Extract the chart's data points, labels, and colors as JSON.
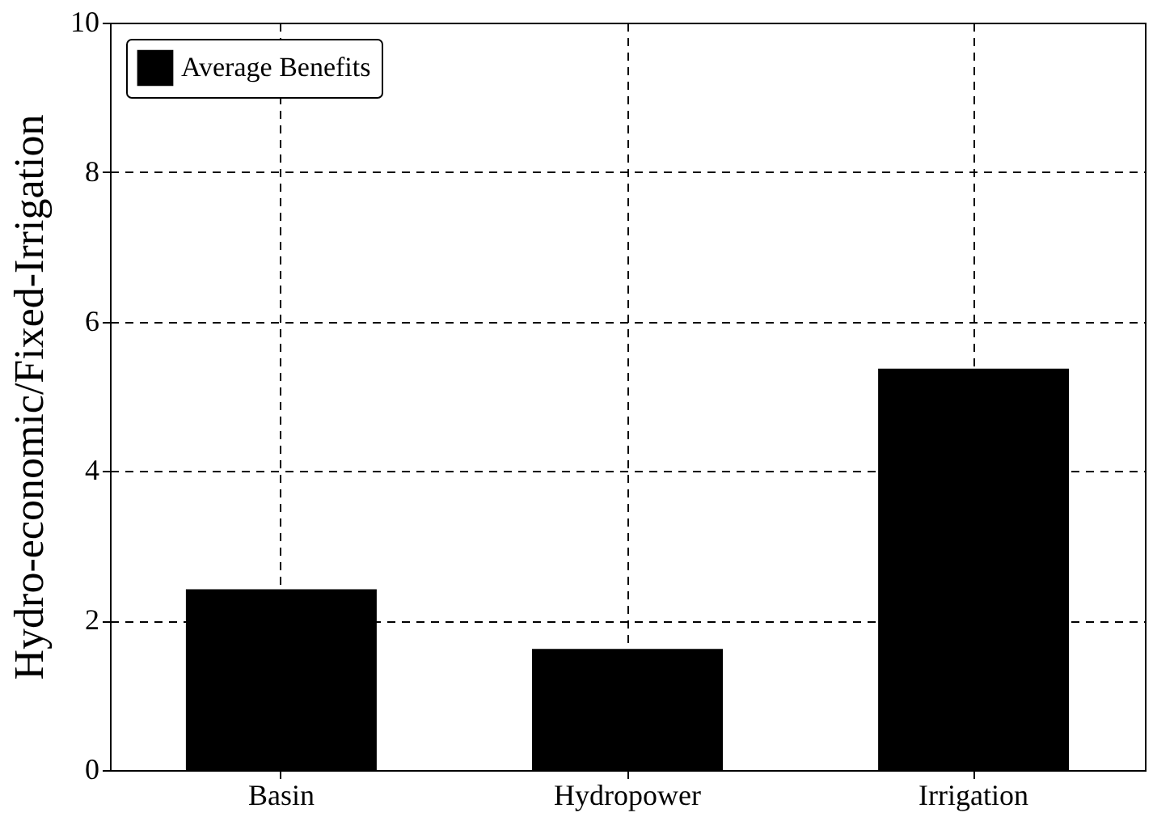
{
  "chart_data": {
    "type": "bar",
    "ylabel": "Hydro-economic/Fixed-Irrigation",
    "categories": [
      "Basin",
      "Hydropower",
      "Irrigation"
    ],
    "series": [
      {
        "name": "Average Benefits",
        "color": "#000000",
        "values": [
          2.42,
          1.62,
          5.37
        ]
      }
    ],
    "ylim": [
      0,
      10
    ],
    "yticks": [
      0,
      2,
      4,
      6,
      8,
      10
    ],
    "grid": true,
    "legend": "top left"
  }
}
